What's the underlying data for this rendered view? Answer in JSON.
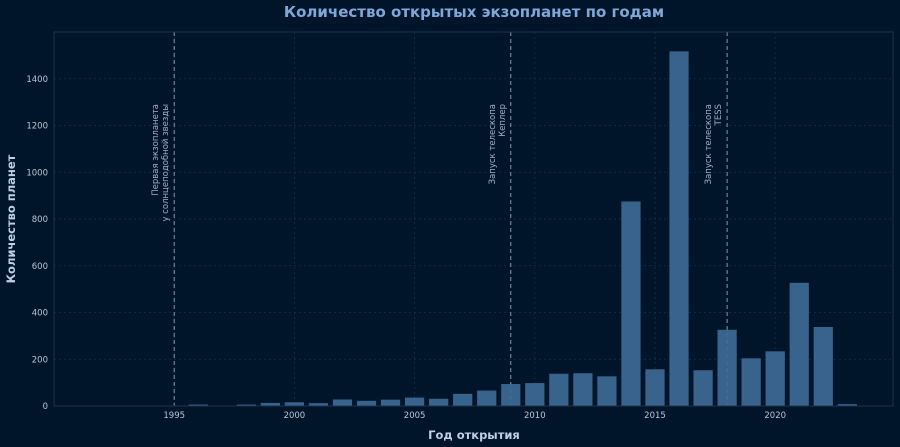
{
  "chart_data": {
    "type": "bar",
    "title": "Количество открытых экзопланет по годам",
    "xlabel": "Год открытия",
    "ylabel": "Количество планет",
    "xlim": [
      1990,
      2024.9
    ],
    "ylim": [
      0,
      1600
    ],
    "xticks": [
      1995,
      2000,
      2005,
      2010,
      2015,
      2020
    ],
    "yticks": [
      0,
      200,
      400,
      600,
      800,
      1000,
      1200,
      1400
    ],
    "grid": true,
    "x": [
      1992,
      1994,
      1995,
      1996,
      1997,
      1998,
      1999,
      2000,
      2001,
      2002,
      2003,
      2004,
      2005,
      2006,
      2007,
      2008,
      2009,
      2010,
      2011,
      2012,
      2013,
      2014,
      2015,
      2016,
      2017,
      2018,
      2019,
      2020,
      2021,
      2022,
      2023
    ],
    "values": [
      2,
      1,
      1,
      6,
      1,
      6,
      13,
      16,
      12,
      28,
      22,
      27,
      36,
      31,
      52,
      66,
      94,
      98,
      138,
      140,
      127,
      875,
      157,
      1517,
      153,
      326,
      204,
      234,
      527,
      338,
      8
    ],
    "annotations": [
      {
        "x": 1995,
        "lines": [
          "Первая экзопланета",
          "у солнцеподобной звезды"
        ]
      },
      {
        "x": 2009,
        "lines": [
          "Запуск телескопа",
          "Кеплер"
        ]
      },
      {
        "x": 2018,
        "lines": [
          "Запуск телескопа",
          "TESS"
        ]
      }
    ]
  }
}
